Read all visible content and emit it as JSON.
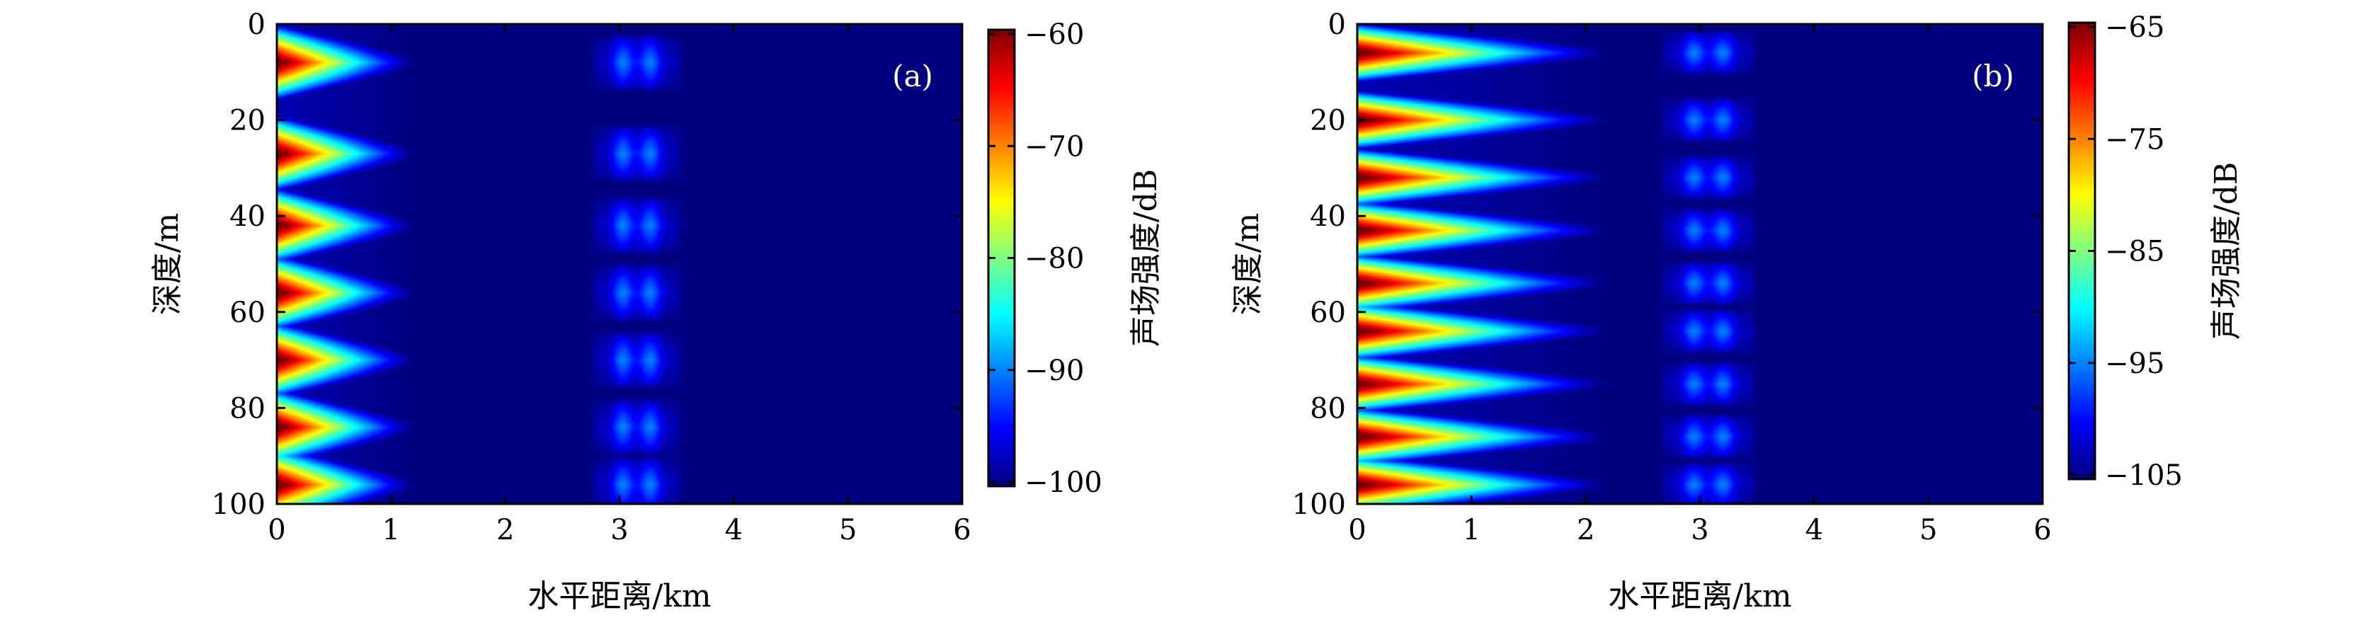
{
  "chart_data": [
    {
      "type": "heatmap",
      "panel_label": "(a)",
      "xlabel": "水平距离/km",
      "ylabel": "深度/m",
      "colorbar_label": "声场强度/dB",
      "xlim": [
        0,
        6
      ],
      "ylim": [
        0,
        100
      ],
      "y_inverted": true,
      "xticks": [
        "0",
        "1",
        "2",
        "3",
        "4",
        "5",
        "6"
      ],
      "yticks": [
        "0",
        "20",
        "40",
        "60",
        "80",
        "100"
      ],
      "colorbar_range": [
        -100,
        -60
      ],
      "colorbar_ticks": [
        "−60",
        "−70",
        "−80",
        "−90",
        "−100"
      ],
      "colormap": "jet",
      "field": {
        "description_values": "approximate intensity pattern in dB",
        "near_field_lobes_centers_m": [
          8,
          27,
          42,
          56,
          70,
          84,
          96
        ],
        "near_field_peak_db": -60,
        "near_field_decay_end_km": 1.2,
        "far_group_range_km": [
          2.75,
          3.55
        ],
        "far_group_peak_db": -90,
        "background_db": -100
      }
    },
    {
      "type": "heatmap",
      "panel_label": "(b)",
      "xlabel": "水平距离/km",
      "ylabel": "深度/m",
      "colorbar_label": "声场强度/dB",
      "xlim": [
        0,
        6
      ],
      "ylim": [
        0,
        100
      ],
      "y_inverted": true,
      "xticks": [
        "0",
        "1",
        "2",
        "3",
        "4",
        "5",
        "6"
      ],
      "yticks": [
        "0",
        "20",
        "40",
        "60",
        "80",
        "100"
      ],
      "colorbar_range": [
        -105,
        -65
      ],
      "colorbar_ticks": [
        "−65",
        "−75",
        "−85",
        "−95",
        "−105"
      ],
      "colormap": "jet",
      "field": {
        "description_values": "approximate intensity pattern in dB",
        "near_field_lobes_centers_m": [
          6,
          20,
          32,
          43,
          54,
          64,
          75,
          86,
          96
        ],
        "near_field_peak_db": -65,
        "near_field_decay_end_km": 2.2,
        "far_group_range_km": [
          2.65,
          3.5
        ],
        "far_group_peak_db": -95,
        "background_db": -105
      }
    }
  ],
  "colors": {
    "background_jet_min": "#00007f",
    "axis": "#000000"
  }
}
